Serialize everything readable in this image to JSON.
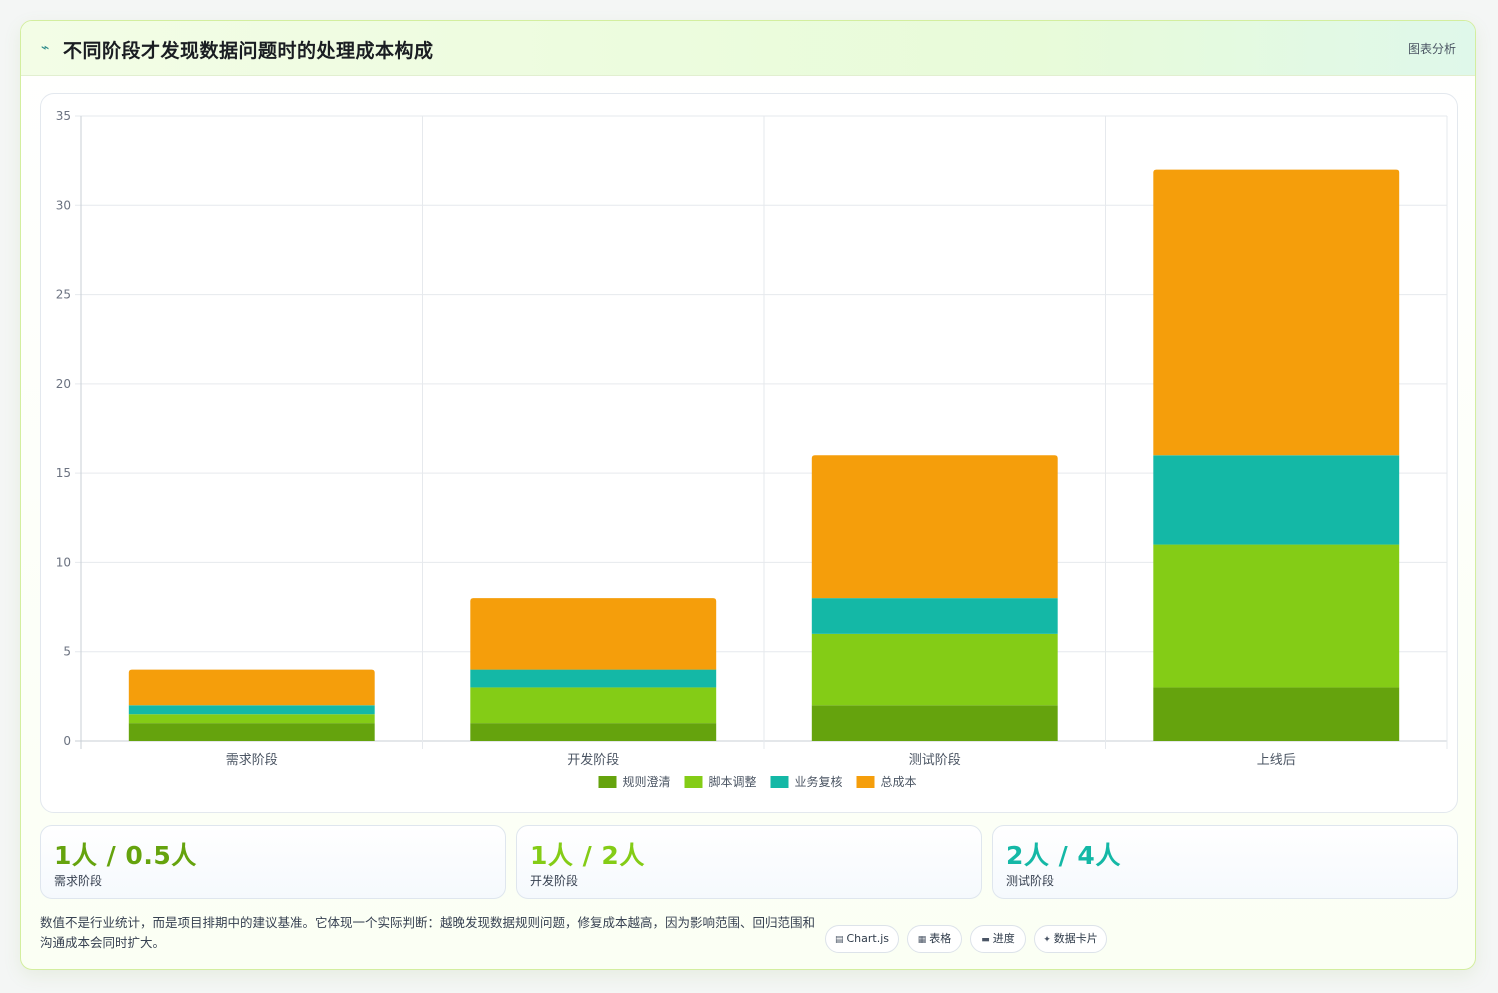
{
  "header": {
    "icon": "line-chart-icon",
    "title": "不同阶段才发现数据问题时的处理成本构成",
    "tag": "图表分析"
  },
  "chart_data": {
    "type": "bar",
    "stacked": true,
    "categories": [
      "需求阶段",
      "开发阶段",
      "测试阶段",
      "上线后"
    ],
    "series": [
      {
        "name": "规则澄清",
        "color": "#65a30d",
        "values": [
          1,
          1,
          2,
          3
        ]
      },
      {
        "name": "脚本调整",
        "color": "#84cc16",
        "values": [
          0.5,
          2,
          4,
          8
        ]
      },
      {
        "name": "业务复核",
        "color": "#14b8a6",
        "values": [
          0.5,
          1,
          2,
          5
        ]
      },
      {
        "name": "总成本",
        "color": "#f59e0b",
        "values": [
          2,
          4,
          8,
          16
        ]
      }
    ],
    "ylim": [
      0,
      35
    ],
    "yticks": [
      0,
      5,
      10,
      15,
      20,
      25,
      30,
      35
    ],
    "grid": true,
    "legend": "bottom-center"
  },
  "stats": [
    {
      "value": "1人 / 0.5人",
      "label": "需求阶段",
      "color": "#65a30d"
    },
    {
      "value": "1人 / 2人",
      "label": "开发阶段",
      "color": "#84cc16"
    },
    {
      "value": "2人 / 4人",
      "label": "测试阶段",
      "color": "#14b8a6"
    }
  ],
  "footnote": "数值不是行业统计，而是项目排期中的建议基准。它体现一个实际判断：越晚发现数据规则问题，修复成本越高，因为影响范围、回归范围和沟通成本会同时扩大。",
  "chips": [
    {
      "icon": "chart-icon",
      "glyph": "▤",
      "label": "Chart.js"
    },
    {
      "icon": "table-icon",
      "glyph": "▦",
      "label": "表格"
    },
    {
      "icon": "progress-icon",
      "glyph": "▬",
      "label": "进度"
    },
    {
      "icon": "sparkle-icon",
      "glyph": "✦",
      "label": "数据卡片"
    }
  ]
}
